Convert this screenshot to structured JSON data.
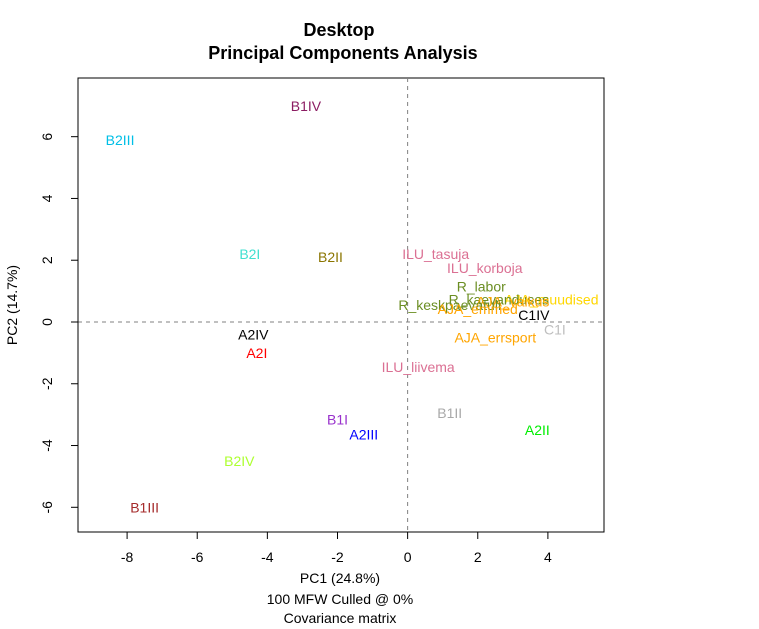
{
  "chart_data": {
    "type": "scatter",
    "title": "Desktop",
    "subtitle": "Principal Components Analysis",
    "xlabel": "PC1 (24.8%)",
    "ylabel": "PC2 (14.7%)",
    "caption_lines": [
      "100 MFW  Culled @ 0%",
      "Covariance matrix"
    ],
    "xlim": [
      -9.4,
      5.6
    ],
    "ylim": [
      -6.8,
      7.9
    ],
    "x_ticks": [
      -8,
      -6,
      -4,
      -2,
      0,
      2,
      4
    ],
    "y_ticks": [
      -6,
      -4,
      -2,
      0,
      2,
      4,
      6
    ],
    "grid": false,
    "reference_lines": {
      "x": 0,
      "y": 0
    },
    "points": [
      {
        "label": "B1IV",
        "x": -2.9,
        "y": 7.0,
        "color": "#8B1C62"
      },
      {
        "label": "B2III",
        "x": -8.2,
        "y": 5.9,
        "color": "#00BFE6"
      },
      {
        "label": "B2I",
        "x": -4.5,
        "y": 2.2,
        "color": "#40E0D0"
      },
      {
        "label": "B2II",
        "x": -2.2,
        "y": 2.1,
        "color": "#8B7500"
      },
      {
        "label": "ILU_tasuja",
        "x": 0.8,
        "y": 2.2,
        "color": "#DB7093"
      },
      {
        "label": "ILU_korboja",
        "x": 2.2,
        "y": 1.75,
        "color": "#DB7093"
      },
      {
        "label": "R_labor",
        "x": 2.1,
        "y": 1.15,
        "color": "#6B8E23"
      },
      {
        "label": "AJA_muudised",
        "x": 4.1,
        "y": 0.72,
        "color": "#FFD700"
      },
      {
        "label": "R_kaevanduses",
        "x": 2.6,
        "y": 0.72,
        "color": "#6B8E23"
      },
      {
        "label": "AJA_vaikus",
        "x": 3.0,
        "y": 0.66,
        "color": "#FFA500"
      },
      {
        "label": "R_keskpaevatuli",
        "x": 1.2,
        "y": 0.55,
        "color": "#6B8E23"
      },
      {
        "label": "AJA_emmed",
        "x": 2.0,
        "y": 0.42,
        "color": "#FFA500"
      },
      {
        "label": "C1IV",
        "x": 3.6,
        "y": 0.22,
        "color": "#000000"
      },
      {
        "label": "C1I",
        "x": 4.2,
        "y": -0.25,
        "color": "#BEBEBE"
      },
      {
        "label": "AJA_errsport",
        "x": 2.5,
        "y": -0.5,
        "color": "#FFA500"
      },
      {
        "label": "A2IV",
        "x": -4.4,
        "y": -0.4,
        "color": "#000000"
      },
      {
        "label": "A2I",
        "x": -4.3,
        "y": -1.0,
        "color": "#FF0000"
      },
      {
        "label": "ILU_liivema",
        "x": 0.3,
        "y": -1.45,
        "color": "#DB7093"
      },
      {
        "label": "B1II",
        "x": 1.2,
        "y": -2.95,
        "color": "#A9A9A9"
      },
      {
        "label": "B1I",
        "x": -2.0,
        "y": -3.15,
        "color": "#9932CC"
      },
      {
        "label": "A2III",
        "x": -1.25,
        "y": -3.65,
        "color": "#0000FF"
      },
      {
        "label": "A2II",
        "x": 3.7,
        "y": -3.5,
        "color": "#00EE00"
      },
      {
        "label": "B2IV",
        "x": -4.8,
        "y": -4.5,
        "color": "#ADFF2F"
      },
      {
        "label": "B1III",
        "x": -7.5,
        "y": -6.0,
        "color": "#A52A2A"
      }
    ]
  }
}
